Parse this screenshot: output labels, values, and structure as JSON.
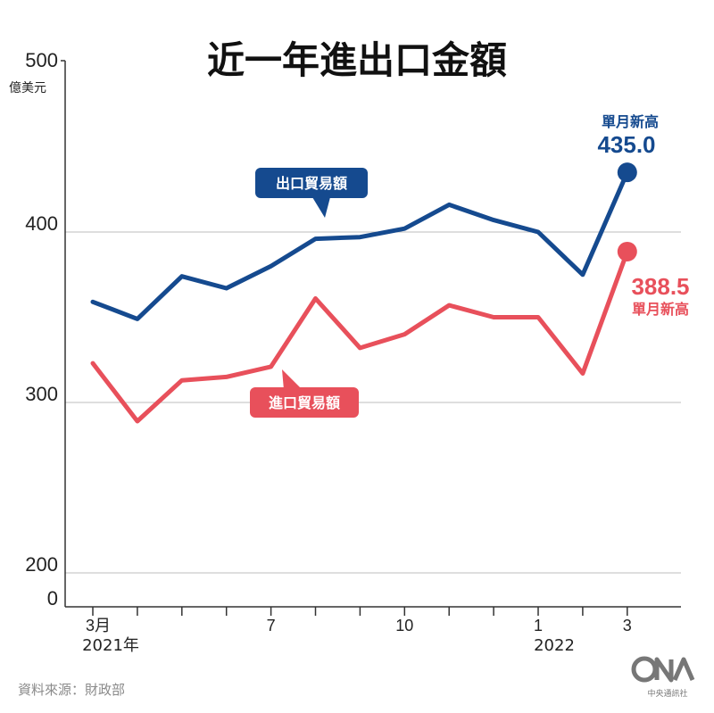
{
  "chart_data": {
    "type": "line",
    "title": "近一年進出口金額",
    "ylabel": "億美元",
    "ylim": [
      0,
      500
    ],
    "y_axis_break": [
      0,
      200
    ],
    "yticks": [
      "500",
      "400",
      "300",
      "200",
      "0"
    ],
    "grid": true,
    "x": [
      "2021-03",
      "2021-04",
      "2021-05",
      "2021-06",
      "2021-07",
      "2021-08",
      "2021-09",
      "2021-10",
      "2021-11",
      "2021-12",
      "2022-01",
      "2022-02",
      "2022-03"
    ],
    "x_tick_labels": [
      "3月",
      "",
      "",
      "",
      "7",
      "",
      "",
      "10",
      "",
      "",
      "1",
      "",
      "3"
    ],
    "x_sub_labels": [
      "2021年",
      "",
      "",
      "",
      "",
      "",
      "",
      "",
      "",
      "",
      "2022",
      "",
      ""
    ],
    "series": [
      {
        "name": "出口貿易額",
        "color": "#154a8f",
        "values": [
          359,
          349,
          374,
          367,
          380,
          396,
          397,
          402,
          416,
          407,
          400,
          375,
          435.0
        ]
      },
      {
        "name": "進口貿易額",
        "color": "#e8505b",
        "values": [
          323,
          289,
          313,
          315,
          321,
          361,
          332,
          340,
          357,
          350,
          350,
          317,
          388.5
        ]
      }
    ],
    "annotations": {
      "export_high_label": "單月新高",
      "export_high_value": "435.0",
      "import_high_value": "388.5",
      "import_high_label": "單月新高"
    },
    "source": "資料來源：財政部"
  },
  "logo": {
    "name": "CNA",
    "caption": "中央通訊社"
  }
}
